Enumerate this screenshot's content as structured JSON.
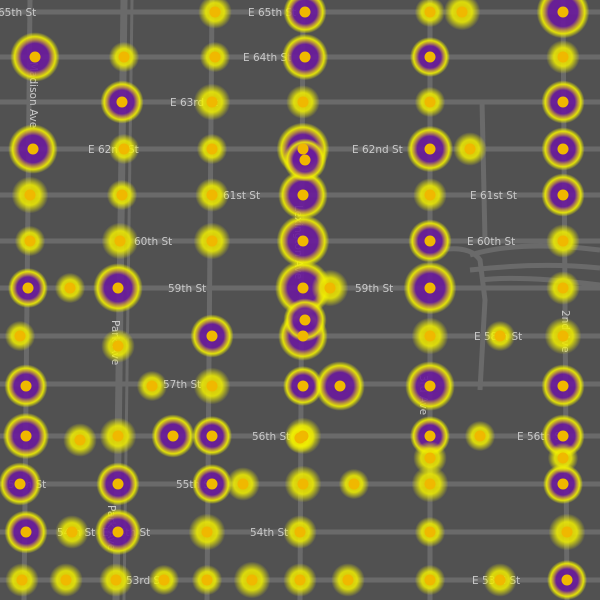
{
  "map": {
    "colors": {
      "background": "#515151",
      "street": "#6a6a6a",
      "label": "#c9c9c9",
      "heat_outer": "#f2f200",
      "heat_mid": "#c89a3a",
      "heat_core": "#6a1a9c",
      "point": "#f0b800"
    },
    "street_labels": [
      "E 65th St",
      "65th St",
      "E 64th St",
      "E 63rd St",
      "E 62nd St",
      "E 62nd St",
      "E 61st St",
      "61st St",
      "60th St",
      "E 60th St",
      "59th St",
      "59th St",
      "E 58th St",
      "57th St",
      "E 56th St",
      "56th St",
      "55th St",
      "55th St",
      "E 54th St",
      "54th St",
      "54th St",
      "53rd St",
      "E 53rd St",
      "Madison Ave",
      "Park Ave",
      "Park Ave",
      "Lexington Ave",
      "3rd Ave",
      "2nd Ave"
    ],
    "heat_intensities": [
      0.3,
      0.6,
      0.2,
      0.9,
      0.4,
      0.8,
      0.7,
      0.2,
      0.2,
      0.5,
      0.3,
      0.6,
      0.4,
      0.3,
      0.2,
      0.6,
      0.8,
      0.2,
      0.9,
      0.2,
      0.7,
      0.3,
      0.6,
      0.4,
      0.8,
      0.3,
      0.3,
      0.2,
      0.6,
      0.2,
      0.9,
      0.6,
      0.4,
      0.4,
      0.3,
      1.0,
      0.2,
      0.9,
      0.5,
      0.3,
      0.8,
      0.4,
      0.2,
      0.6,
      0.8,
      0.4,
      0.4,
      0.2,
      0.3,
      0.6,
      0.5,
      0.8,
      0.6,
      0.2,
      0.8,
      0.4,
      0.4,
      0.5,
      0.4,
      0.5,
      0.6,
      0.2,
      0.7,
      0.6,
      0.6,
      0.5,
      0.4,
      0.4,
      0.5,
      0.3,
      0.6,
      0.2,
      0.6,
      0.7,
      0.4,
      0.3,
      0.2,
      0.4,
      0.3,
      0.3,
      0.3,
      0.2,
      0.3,
      0.3,
      0.2,
      0.5,
      0.3,
      0.4,
      0.2,
      0.3,
      0.2,
      0.3,
      0.2,
      0.3,
      0.6,
      0.6
    ]
  }
}
